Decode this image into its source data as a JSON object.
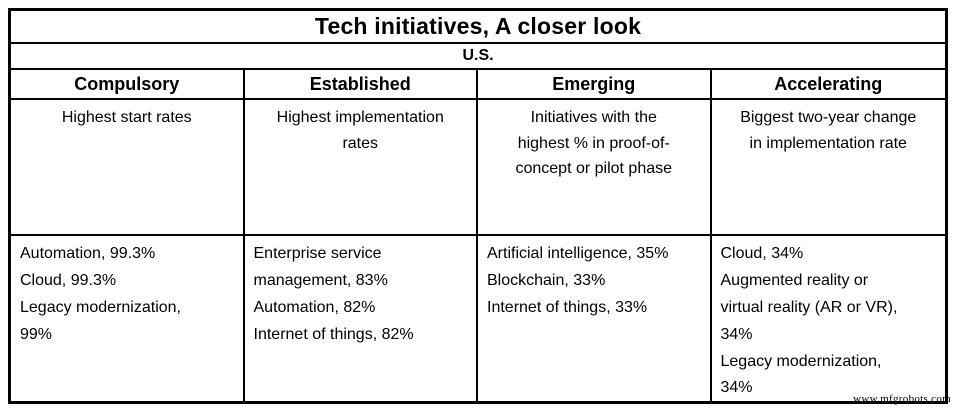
{
  "chart_data": {
    "type": "table",
    "title": "Tech initiatives, A closer look",
    "subtitle": "U.S.",
    "columns": [
      {
        "header": "Compulsory",
        "description": "Highest start rates",
        "items": [
          {
            "label": "Automation",
            "value_pct": 99.3,
            "display": "Automation, 99.3%"
          },
          {
            "label": "Cloud",
            "value_pct": 99.3,
            "display": "Cloud, 99.3%"
          },
          {
            "label": "Legacy modernization",
            "value_pct": 99,
            "display": "Legacy modernization, 99%"
          }
        ]
      },
      {
        "header": "Established",
        "description": "Highest implementation rates",
        "items": [
          {
            "label": "Enterprise service management",
            "value_pct": 83,
            "display": "Enterprise service management, 83%"
          },
          {
            "label": "Automation",
            "value_pct": 82,
            "display": "Automation, 82%"
          },
          {
            "label": "Internet of things",
            "value_pct": 82,
            "display": "Internet of things, 82%"
          }
        ]
      },
      {
        "header": "Emerging",
        "description": "Initiatives with the highest % in proof-of-concept or pilot phase",
        "items": [
          {
            "label": "Artificial intelligence",
            "value_pct": 35,
            "display": "Artificial intelligence, 35%"
          },
          {
            "label": "Blockchain",
            "value_pct": 33,
            "display": "Blockchain, 33%"
          },
          {
            "label": "Internet of things",
            "value_pct": 33,
            "display": "Internet of things, 33%"
          }
        ]
      },
      {
        "header": "Accelerating",
        "description": "Biggest two-year change in implementation rate",
        "items": [
          {
            "label": "Cloud",
            "value_pct": 34,
            "display": "Cloud, 34%"
          },
          {
            "label": "Augmented reality or virtual reality (AR or VR)",
            "value_pct": 34,
            "display": "Augmented reality or virtual reality (AR or VR), 34%"
          },
          {
            "label": "Legacy modernization",
            "value_pct": 34,
            "display": "Legacy modernization, 34%"
          }
        ]
      }
    ],
    "values_unit": "%",
    "legend_position": "none",
    "grid": "full-borders"
  },
  "watermark": "www.mfgrobots.com",
  "colors": {
    "border": "#000000",
    "background": "#ffffff",
    "text": "#000000"
  }
}
